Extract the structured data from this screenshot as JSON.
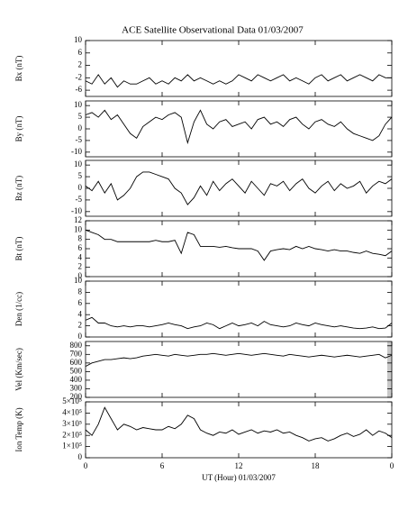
{
  "title": "ACE Satellite Observational Data   01/03/2007",
  "x_label": "UT (Hour)  01/03/2007",
  "chart_data": [
    {
      "type": "line",
      "y_label": "Bx (nT)",
      "color": "#000000",
      "x": [
        0,
        0.5,
        1,
        1.5,
        2,
        2.5,
        3,
        3.5,
        4,
        4.5,
        5,
        5.5,
        6,
        6.5,
        7,
        7.5,
        8,
        8.5,
        9,
        9.5,
        10,
        10.5,
        11,
        11.5,
        12,
        12.5,
        13,
        13.5,
        14,
        14.5,
        15,
        15.5,
        16,
        16.5,
        17,
        17.5,
        18,
        18.5,
        19,
        19.5,
        20,
        20.5,
        21,
        21.5,
        22,
        22.5,
        23,
        23.5,
        24
      ],
      "values": [
        -3,
        -4,
        -1,
        -4,
        -2,
        -5,
        -3,
        -4,
        -4,
        -3,
        -2,
        -4,
        -3,
        -4,
        -2,
        -3,
        -1,
        -3,
        -2,
        -3,
        -4,
        -3,
        -4,
        -3,
        -1,
        -2,
        -3,
        -1,
        -2,
        -3,
        -2,
        -1,
        -3,
        -2,
        -3,
        -4,
        -2,
        -1,
        -3,
        -2,
        -1,
        -3,
        -2,
        -1,
        -2,
        -3,
        -1,
        -2,
        -2
      ],
      "xlim": [
        0,
        24
      ],
      "xticks": [
        0,
        6,
        12,
        18,
        {
          "value": 24,
          "label": "0"
        }
      ],
      "ylim": [
        -8,
        10
      ],
      "yticks": [
        10,
        6,
        2,
        -2,
        -6
      ]
    },
    {
      "type": "line",
      "y_label": "By (nT)",
      "color": "#000000",
      "x": [
        0,
        0.5,
        1,
        1.5,
        2,
        2.5,
        3,
        3.5,
        4,
        4.5,
        5,
        5.5,
        6,
        6.5,
        7,
        7.5,
        8,
        8.5,
        9,
        9.5,
        10,
        10.5,
        11,
        11.5,
        12,
        12.5,
        13,
        13.5,
        14,
        14.5,
        15,
        15.5,
        16,
        16.5,
        17,
        17.5,
        18,
        18.5,
        19,
        19.5,
        20,
        20.5,
        21,
        21.5,
        22,
        22.5,
        23,
        23.5,
        24
      ],
      "values": [
        6,
        7,
        5,
        8,
        4,
        6,
        2,
        -2,
        -4,
        1,
        3,
        5,
        4,
        6,
        7,
        5,
        -6,
        3,
        8,
        2,
        0,
        3,
        4,
        1,
        2,
        3,
        0,
        4,
        5,
        2,
        3,
        1,
        4,
        5,
        2,
        0,
        3,
        4,
        2,
        1,
        3,
        0,
        -2,
        -3,
        -4,
        -5,
        -3,
        2,
        5
      ],
      "xlim": [
        0,
        24
      ],
      "xticks": [
        0,
        6,
        12,
        18,
        {
          "value": 24,
          "label": "0"
        }
      ],
      "ylim": [
        -12,
        12
      ],
      "yticks": [
        10,
        5,
        0,
        -5,
        -10
      ]
    },
    {
      "type": "line",
      "y_label": "Bz (nT)",
      "color": "#000000",
      "x": [
        0,
        0.5,
        1,
        1.5,
        2,
        2.5,
        3,
        3.5,
        4,
        4.5,
        5,
        5.5,
        6,
        6.5,
        7,
        7.5,
        8,
        8.5,
        9,
        9.5,
        10,
        10.5,
        11,
        11.5,
        12,
        12.5,
        13,
        13.5,
        14,
        14.5,
        15,
        15.5,
        16,
        16.5,
        17,
        17.5,
        18,
        18.5,
        19,
        19.5,
        20,
        20.5,
        21,
        21.5,
        22,
        22.5,
        23,
        23.5,
        24
      ],
      "values": [
        1,
        -1,
        3,
        -2,
        2,
        -5,
        -3,
        0,
        5,
        7,
        7,
        6,
        5,
        4,
        0,
        -2,
        -7,
        -4,
        1,
        -3,
        3,
        -1,
        2,
        4,
        1,
        -2,
        3,
        0,
        -3,
        2,
        1,
        3,
        -1,
        2,
        4,
        0,
        -2,
        1,
        3,
        -1,
        2,
        0,
        1,
        3,
        -2,
        1,
        3,
        2,
        4
      ],
      "xlim": [
        0,
        24
      ],
      "xticks": [
        0,
        6,
        12,
        18,
        {
          "value": 24,
          "label": "0"
        }
      ],
      "ylim": [
        -12,
        12
      ],
      "yticks": [
        10,
        5,
        0,
        -5,
        -10
      ]
    },
    {
      "type": "line",
      "y_label": "Bt (nT)",
      "color": "#000000",
      "x": [
        0,
        0.5,
        1,
        1.5,
        2,
        2.5,
        3,
        3.5,
        4,
        4.5,
        5,
        5.5,
        6,
        6.5,
        7,
        7.5,
        8,
        8.5,
        9,
        9.5,
        10,
        10.5,
        11,
        11.5,
        12,
        12.5,
        13,
        13.5,
        14,
        14.5,
        15,
        15.5,
        16,
        16.5,
        17,
        17.5,
        18,
        18.5,
        19,
        19.5,
        20,
        20.5,
        21,
        21.5,
        22,
        22.5,
        23,
        23.5,
        24
      ],
      "values": [
        10,
        9.5,
        9,
        8,
        8,
        7.5,
        7.5,
        7.5,
        7.5,
        7.5,
        7.5,
        7.8,
        7.5,
        7.5,
        7.8,
        5,
        9.5,
        9,
        6.5,
        6.5,
        6.5,
        6.3,
        6.5,
        6.2,
        6,
        6,
        6,
        5.5,
        3.5,
        5.5,
        5.8,
        6,
        5.8,
        6.5,
        6,
        6.5,
        6,
        5.8,
        5.5,
        5.8,
        5.5,
        5.5,
        5.2,
        5,
        5.5,
        5,
        4.8,
        4.5,
        5.5
      ],
      "xlim": [
        0,
        24
      ],
      "xticks": [
        0,
        6,
        12,
        18,
        {
          "value": 24,
          "label": "0"
        }
      ],
      "ylim": [
        0,
        12
      ],
      "yticks": [
        12,
        10,
        8,
        6,
        4,
        2,
        0
      ]
    },
    {
      "type": "line",
      "y_label": "Den (1/cc)",
      "color": "#000000",
      "x": [
        0,
        0.5,
        1,
        1.5,
        2,
        2.5,
        3,
        3.5,
        4,
        4.5,
        5,
        5.5,
        6,
        6.5,
        7,
        7.5,
        8,
        8.5,
        9,
        9.5,
        10,
        10.5,
        11,
        11.5,
        12,
        12.5,
        13,
        13.5,
        14,
        14.5,
        15,
        15.5,
        16,
        16.5,
        17,
        17.5,
        18,
        18.5,
        19,
        19.5,
        20,
        20.5,
        21,
        21.5,
        22,
        22.5,
        23,
        23.5,
        24
      ],
      "values": [
        3,
        3.5,
        2.5,
        2.5,
        2,
        1.8,
        2,
        1.8,
        2,
        2,
        1.8,
        2,
        2.2,
        2.5,
        2.2,
        2,
        1.5,
        1.8,
        2,
        2.5,
        2.2,
        1.5,
        2,
        2.5,
        2,
        2.2,
        2.5,
        2,
        2.8,
        2.2,
        2,
        1.8,
        2,
        2.5,
        2.2,
        2,
        2.5,
        2.2,
        2,
        1.8,
        2,
        1.8,
        1.6,
        1.5,
        1.6,
        1.8,
        1.5,
        1.6,
        2.5
      ],
      "xlim": [
        0,
        24
      ],
      "xticks": [
        0,
        6,
        12,
        18,
        {
          "value": 24,
          "label": "0"
        }
      ],
      "ylim": [
        0,
        10
      ],
      "yticks": [
        10,
        8,
        6,
        4,
        2,
        0
      ]
    },
    {
      "type": "line",
      "y_label": "Vel (Km/sec)",
      "color": "#000000",
      "x": [
        0,
        0.5,
        1,
        1.5,
        2,
        2.5,
        3,
        3.5,
        4,
        4.5,
        5,
        5.5,
        6,
        6.5,
        7,
        7.5,
        8,
        8.5,
        9,
        9.5,
        10,
        10.5,
        11,
        11.5,
        12,
        12.5,
        13,
        13.5,
        14,
        14.5,
        15,
        15.5,
        16,
        16.5,
        17,
        17.5,
        18,
        18.5,
        19,
        19.5,
        20,
        20.5,
        21,
        21.5,
        22,
        22.5,
        23,
        23.5,
        24
      ],
      "values": [
        560,
        600,
        620,
        640,
        640,
        650,
        660,
        650,
        660,
        680,
        690,
        700,
        690,
        680,
        700,
        690,
        680,
        690,
        700,
        700,
        710,
        700,
        690,
        700,
        710,
        700,
        690,
        700,
        710,
        700,
        690,
        680,
        700,
        690,
        680,
        670,
        680,
        690,
        680,
        670,
        680,
        690,
        680,
        670,
        680,
        690,
        700,
        660,
        690
      ],
      "xlim": [
        0,
        24
      ],
      "xticks": [
        0,
        6,
        12,
        18,
        {
          "value": 24,
          "label": "0"
        }
      ],
      "ylim": [
        200,
        850
      ],
      "yticks": [
        800,
        700,
        600,
        500,
        400,
        300,
        200
      ]
    },
    {
      "type": "line",
      "y_label": "Ion Temp (K)",
      "color": "#000000",
      "x": [
        0,
        0.5,
        1,
        1.5,
        2,
        2.5,
        3,
        3.5,
        4,
        4.5,
        5,
        5.5,
        6,
        6.5,
        7,
        7.5,
        8,
        8.5,
        9,
        9.5,
        10,
        10.5,
        11,
        11.5,
        12,
        12.5,
        13,
        13.5,
        14,
        14.5,
        15,
        15.5,
        16,
        16.5,
        17,
        17.5,
        18,
        18.5,
        19,
        19.5,
        20,
        20.5,
        21,
        21.5,
        22,
        22.5,
        23,
        23.5,
        24
      ],
      "values": [
        250000,
        200000,
        300000,
        450000,
        350000,
        250000,
        300000,
        280000,
        250000,
        270000,
        260000,
        250000,
        250000,
        280000,
        260000,
        300000,
        380000,
        350000,
        250000,
        220000,
        200000,
        230000,
        220000,
        250000,
        210000,
        230000,
        250000,
        220000,
        240000,
        230000,
        250000,
        220000,
        230000,
        200000,
        180000,
        150000,
        170000,
        180000,
        150000,
        170000,
        200000,
        220000,
        190000,
        210000,
        250000,
        200000,
        240000,
        220000,
        180000
      ],
      "xlim": [
        0,
        24
      ],
      "xticks": [
        0,
        6,
        12,
        18,
        {
          "value": 24,
          "label": "0"
        }
      ],
      "ylim": [
        0,
        500000
      ],
      "yticks": [
        {
          "value": 500000,
          "label": "5×10⁵"
        },
        {
          "value": 400000,
          "label": "4×10⁵"
        },
        {
          "value": 300000,
          "label": "3×10⁵"
        },
        {
          "value": 200000,
          "label": "2×10⁵"
        },
        {
          "value": 100000,
          "label": "1×10⁵"
        },
        0
      ]
    }
  ]
}
